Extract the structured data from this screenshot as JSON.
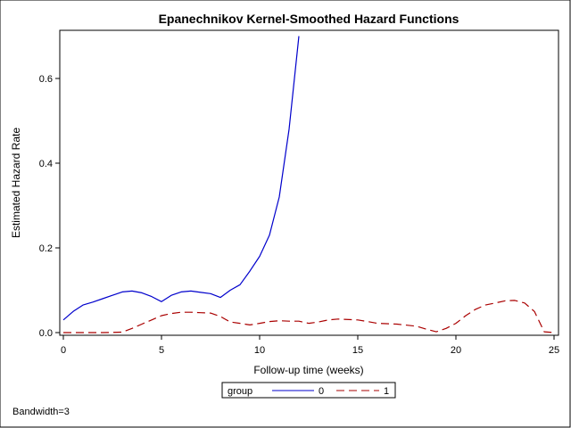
{
  "chart_data": {
    "type": "line",
    "title": "Epanechnikov Kernel-Smoothed Hazard Functions",
    "xlabel": "Follow-up time (weeks)",
    "ylabel": "Estimated Hazard Rate",
    "xlim": [
      0,
      25
    ],
    "ylim": [
      0,
      0.7
    ],
    "xticks": [
      "0",
      "5",
      "10",
      "15",
      "20",
      "25"
    ],
    "yticks": [
      "0.0",
      "0.2",
      "0.4",
      "0.6"
    ],
    "grid": false,
    "legend": {
      "title": "group",
      "placement": "bottom-center",
      "entries": [
        "0",
        "1"
      ]
    },
    "footnote": "Bandwidth=3",
    "series": [
      {
        "name": "0",
        "color": "#0000CC",
        "dash": "solid",
        "points": [
          [
            0,
            0.03
          ],
          [
            0.5,
            0.05
          ],
          [
            1,
            0.065
          ],
          [
            1.5,
            0.072
          ],
          [
            2,
            0.08
          ],
          [
            2.5,
            0.088
          ],
          [
            3,
            0.096
          ],
          [
            3.5,
            0.098
          ],
          [
            4,
            0.094
          ],
          [
            4.5,
            0.085
          ],
          [
            5,
            0.073
          ],
          [
            5.5,
            0.088
          ],
          [
            6,
            0.096
          ],
          [
            6.5,
            0.098
          ],
          [
            7,
            0.095
          ],
          [
            7.5,
            0.092
          ],
          [
            8,
            0.083
          ],
          [
            8.5,
            0.1
          ],
          [
            9,
            0.113
          ],
          [
            9.5,
            0.145
          ],
          [
            10,
            0.18
          ],
          [
            10.5,
            0.23
          ],
          [
            11,
            0.32
          ],
          [
            11.5,
            0.48
          ],
          [
            12,
            0.7
          ]
        ]
      },
      {
        "name": "1",
        "color": "#AA0000",
        "dash": "dashed",
        "points": [
          [
            0,
            0.0
          ],
          [
            1,
            0.0
          ],
          [
            2,
            0.0
          ],
          [
            3,
            0.001
          ],
          [
            3.5,
            0.01
          ],
          [
            4,
            0.02
          ],
          [
            4.5,
            0.03
          ],
          [
            5,
            0.04
          ],
          [
            5.5,
            0.045
          ],
          [
            6,
            0.048
          ],
          [
            6.5,
            0.048
          ],
          [
            7,
            0.047
          ],
          [
            7.5,
            0.046
          ],
          [
            8,
            0.038
          ],
          [
            8.5,
            0.025
          ],
          [
            9,
            0.022
          ],
          [
            9.5,
            0.018
          ],
          [
            10,
            0.022
          ],
          [
            10.5,
            0.026
          ],
          [
            11,
            0.028
          ],
          [
            11.5,
            0.027
          ],
          [
            12,
            0.027
          ],
          [
            12.5,
            0.022
          ],
          [
            13,
            0.025
          ],
          [
            13.5,
            0.03
          ],
          [
            14,
            0.032
          ],
          [
            15,
            0.03
          ],
          [
            15.5,
            0.026
          ],
          [
            16,
            0.022
          ],
          [
            17,
            0.02
          ],
          [
            18,
            0.015
          ],
          [
            18.5,
            0.008
          ],
          [
            19,
            0.002
          ],
          [
            19.5,
            0.01
          ],
          [
            20,
            0.022
          ],
          [
            20.5,
            0.04
          ],
          [
            21,
            0.055
          ],
          [
            21.5,
            0.065
          ],
          [
            22,
            0.07
          ],
          [
            22.5,
            0.075
          ],
          [
            23,
            0.076
          ],
          [
            23.5,
            0.07
          ],
          [
            24,
            0.05
          ],
          [
            24.5,
            0.002
          ],
          [
            25,
            0.0
          ]
        ]
      }
    ]
  }
}
